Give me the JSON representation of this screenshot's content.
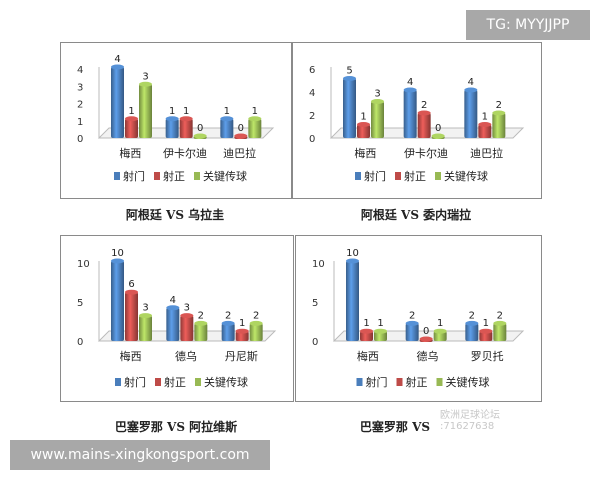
{
  "overlay": {
    "tg_label": "TG: MYYJJPP",
    "site_label": "www.mains-xingkongsport.com",
    "watermark_line1": "欧洲足球论坛",
    "watermark_line2": ":71627638"
  },
  "colors": {
    "射门": "#4a7ebb",
    "射正": "#be4b48",
    "关键传球": "#98b954"
  },
  "chart_data": [
    {
      "type": "bar",
      "title": "阿根廷 VS 乌拉圭",
      "categories": [
        "梅西",
        "伊卡尔迪",
        "迪巴拉"
      ],
      "series": [
        {
          "name": "射门",
          "values": [
            4,
            1,
            1
          ]
        },
        {
          "name": "射正",
          "values": [
            1,
            1,
            0
          ]
        },
        {
          "name": "关键传球",
          "values": [
            3,
            0,
            1
          ]
        }
      ],
      "yticks": [
        0,
        1,
        2,
        3,
        4
      ],
      "ylim": [
        0,
        4
      ],
      "legend": "bottom",
      "grid": false
    },
    {
      "type": "bar",
      "title": "阿根廷 VS 委内瑞拉",
      "categories": [
        "梅西",
        "伊卡尔迪",
        "迪巴拉"
      ],
      "series": [
        {
          "name": "射门",
          "values": [
            5,
            4,
            4
          ]
        },
        {
          "name": "射正",
          "values": [
            1,
            2,
            1
          ]
        },
        {
          "name": "关键传球",
          "values": [
            3,
            0,
            2
          ]
        }
      ],
      "yticks": [
        0,
        2,
        4,
        6
      ],
      "ylim": [
        0,
        6
      ],
      "legend": "bottom",
      "grid": false
    },
    {
      "type": "bar",
      "title": "巴塞罗那 VS 阿拉维斯",
      "categories": [
        "梅西",
        "德乌",
        "丹尼斯"
      ],
      "series": [
        {
          "name": "射门",
          "values": [
            10,
            4,
            2
          ]
        },
        {
          "name": "射正",
          "values": [
            6,
            3,
            1
          ]
        },
        {
          "name": "关键传球",
          "values": [
            3,
            2,
            2
          ]
        }
      ],
      "yticks": [
        0,
        5,
        10
      ],
      "ylim": [
        0,
        10
      ],
      "legend": "bottom",
      "grid": false
    },
    {
      "type": "bar",
      "title": "巴塞罗那 VS",
      "categories": [
        "梅西",
        "德乌",
        "罗贝托"
      ],
      "series": [
        {
          "name": "射门",
          "values": [
            10,
            2,
            2
          ]
        },
        {
          "name": "射正",
          "values": [
            1,
            0,
            1
          ]
        },
        {
          "name": "关键传球",
          "values": [
            1,
            1,
            2
          ]
        }
      ],
      "yticks": [
        0,
        5,
        10
      ],
      "ylim": [
        0,
        10
      ],
      "legend": "bottom",
      "grid": false
    }
  ]
}
